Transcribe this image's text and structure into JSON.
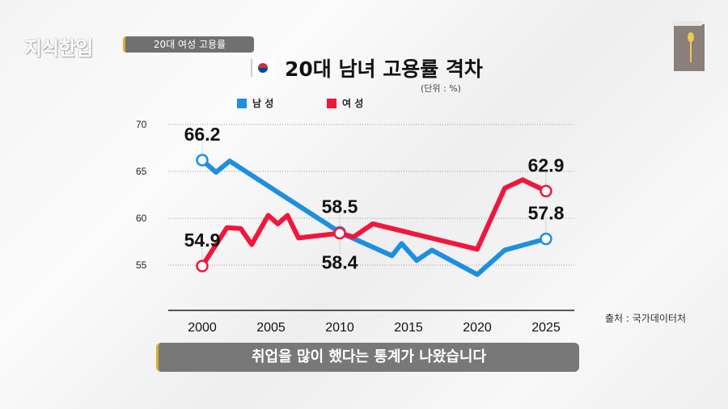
{
  "header": {
    "logo": "지식한입",
    "topic": "20대 여성 고용률"
  },
  "caption": "취업을 많이 했다는 통계가 나왔습니다",
  "source": "출처 : 국가데이터처",
  "icons": {
    "flag": "korea-flag-icon",
    "book": "book-spoon-icon"
  },
  "chart_data": {
    "type": "line",
    "title": "20대 남녀 고용률 격차",
    "unit": "(단위 : %)",
    "xlabel": "",
    "ylabel": "",
    "xlim": [
      2000,
      2025
    ],
    "ylim": [
      52,
      70
    ],
    "x_ticks": [
      "2000",
      "2005",
      "2010",
      "2015",
      "2020",
      "2025"
    ],
    "y_ticks": [
      "70",
      "65",
      "60",
      "55"
    ],
    "grid": true,
    "legend": "top",
    "series": [
      {
        "name": "남 성",
        "color": "#1e8fe0",
        "points": [
          [
            2000,
            66.2
          ],
          [
            2001,
            64.9
          ],
          [
            2002,
            66.1
          ],
          [
            2010,
            58.5
          ],
          [
            2013.8,
            56.0
          ],
          [
            2014.5,
            57.3
          ],
          [
            2015.6,
            55.5
          ],
          [
            2016.7,
            56.6
          ],
          [
            2020,
            54.0
          ],
          [
            2022,
            56.6
          ],
          [
            2025,
            57.8
          ]
        ]
      },
      {
        "name": "여 성",
        "color": "#f0173d",
        "points": [
          [
            2000,
            54.9
          ],
          [
            2001.8,
            59.0
          ],
          [
            2002.8,
            58.9
          ],
          [
            2003.6,
            57.2
          ],
          [
            2004.8,
            60.3
          ],
          [
            2005.5,
            59.4
          ],
          [
            2006.2,
            60.3
          ],
          [
            2007,
            57.9
          ],
          [
            2010,
            58.4
          ],
          [
            2011,
            58.0
          ],
          [
            2012.4,
            59.4
          ],
          [
            2020,
            56.7
          ],
          [
            2022,
            63.2
          ],
          [
            2023.3,
            64.1
          ],
          [
            2025,
            62.9
          ]
        ]
      }
    ],
    "data_labels": [
      {
        "series": 0,
        "x": 2000,
        "text": "66.2",
        "position": "above"
      },
      {
        "series": 1,
        "x": 2000,
        "text": "54.9",
        "position": "above"
      },
      {
        "series": 0,
        "x": 2010,
        "text": "58.5",
        "position": "above"
      },
      {
        "series": 1,
        "x": 2010,
        "text": "58.4",
        "position": "below"
      },
      {
        "series": 1,
        "x": 2025,
        "text": "62.9",
        "position": "above"
      },
      {
        "series": 0,
        "x": 2025,
        "text": "57.8",
        "position": "above"
      }
    ],
    "markers_at": [
      2000,
      2010,
      2025
    ]
  }
}
